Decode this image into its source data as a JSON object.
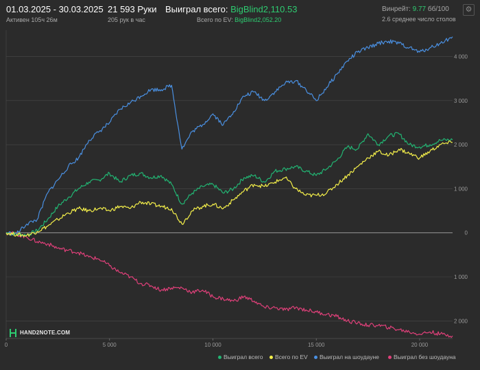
{
  "header": {
    "date_range": "01.03.2025 - 30.03.2025",
    "active": "Активен 105ч 26м",
    "hands": "21 593 Руки",
    "hands_per_hour": "205 рук в час",
    "won_total_label": "Выиграл всего:",
    "won_total_value": "BigBlind2,110.53",
    "ev_total_label": "Всего по EV:",
    "ev_total_value": "BigBlind2,052.20",
    "winrate_label": "Винрейт:",
    "winrate_value": "9.77",
    "winrate_suffix": "бб/100",
    "avg_tables": "2.6 среднее число столов"
  },
  "logo_text": "HAND2NOTE.COM",
  "settings_icon": "gear-icon",
  "colors": {
    "background": "#2b2b2b",
    "won_total": "#22b573",
    "ev": "#f5f04a",
    "showdown": "#4a90e2",
    "non_showdown": "#e0407a",
    "grid": "#4a4a4a",
    "zero_line": "#9a9a9a"
  },
  "chart_data": {
    "type": "line",
    "title": "",
    "xlabel": "",
    "ylabel": "",
    "xlim": [
      0,
      21593
    ],
    "ylim": [
      -2400,
      4600
    ],
    "x_ticks": [
      0,
      5000,
      10000,
      15000,
      20000
    ],
    "x_tick_labels": [
      "0",
      "5 000",
      "10 000",
      "15 000",
      "20 000"
    ],
    "y_ticks": [
      4000,
      3000,
      2000,
      1000,
      0,
      -1000,
      -2000
    ],
    "y_tick_labels": [
      "4 000",
      "3 000",
      "2 000",
      "1 000",
      "0",
      "1 000",
      "2 000"
    ],
    "grid": true,
    "legend_position": "bottom-right",
    "x": [
      0,
      500,
      1000,
      1500,
      2000,
      2500,
      3000,
      3500,
      4000,
      4500,
      5000,
      5500,
      6000,
      6500,
      7000,
      7500,
      8000,
      8500,
      9000,
      9500,
      10000,
      10500,
      11000,
      11500,
      12000,
      12500,
      13000,
      13500,
      14000,
      14500,
      15000,
      15500,
      16000,
      16500,
      17000,
      17500,
      18000,
      18500,
      19000,
      19500,
      20000,
      20500,
      21000,
      21593
    ],
    "series": [
      {
        "name": "Выиграл всего",
        "values": [
          0,
          -30,
          -50,
          50,
          300,
          600,
          800,
          1000,
          1150,
          1200,
          1350,
          1150,
          1300,
          1350,
          1250,
          1300,
          1100,
          650,
          900,
          1050,
          1100,
          900,
          1000,
          1250,
          1300,
          1150,
          1400,
          1450,
          1500,
          1400,
          1300,
          1450,
          1650,
          1950,
          1900,
          2250,
          2000,
          2200,
          2250,
          2000,
          1950,
          2000,
          2100,
          2110
        ]
      },
      {
        "name": "Всего по EV",
        "values": [
          0,
          -40,
          -60,
          30,
          150,
          300,
          450,
          550,
          500,
          550,
          500,
          600,
          550,
          700,
          650,
          600,
          550,
          200,
          500,
          600,
          650,
          550,
          750,
          950,
          1100,
          1050,
          1150,
          1250,
          1000,
          850,
          850,
          900,
          1100,
          1300,
          1500,
          1700,
          1850,
          1750,
          1900,
          1800,
          1700,
          1850,
          2000,
          2052
        ]
      },
      {
        "name": "Выиграл на шоудауне",
        "values": [
          0,
          -20,
          200,
          300,
          900,
          1200,
          1500,
          1700,
          2100,
          2300,
          2500,
          2800,
          2950,
          3100,
          3250,
          3250,
          3350,
          1900,
          2300,
          2450,
          2700,
          2450,
          2750,
          3100,
          3200,
          3000,
          3200,
          3400,
          3450,
          3250,
          3000,
          3300,
          3600,
          3900,
          4100,
          4200,
          4300,
          4350,
          4300,
          4200,
          4100,
          4200,
          4300,
          4450
        ]
      },
      {
        "name": "Выиграл без шоудауна",
        "values": [
          0,
          -30,
          -100,
          -200,
          -250,
          -350,
          -400,
          -450,
          -550,
          -600,
          -750,
          -900,
          -1000,
          -1150,
          -1200,
          -1300,
          -1250,
          -1250,
          -1350,
          -1300,
          -1450,
          -1500,
          -1550,
          -1450,
          -1550,
          -1700,
          -1700,
          -1750,
          -1700,
          -1750,
          -1800,
          -1850,
          -1900,
          -2000,
          -2050,
          -2100,
          -2100,
          -2150,
          -2200,
          -2250,
          -2300,
          -2250,
          -2300,
          -2340
        ]
      }
    ]
  }
}
